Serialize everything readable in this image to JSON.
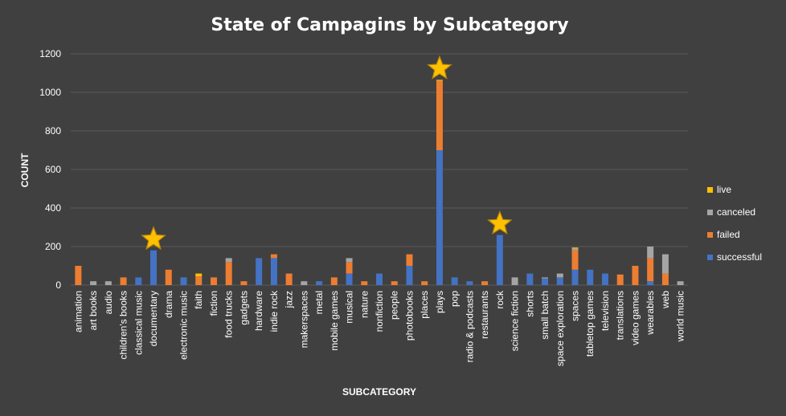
{
  "chart_data": {
    "type": "bar",
    "stacked": true,
    "title": "State of Campagins by Subcategory",
    "xlabel": "SUBCATEGORY",
    "ylabel": "COUNT",
    "ylim": [
      0,
      1200
    ],
    "yticks": [
      0,
      200,
      400,
      600,
      800,
      1000,
      1200
    ],
    "grid": true,
    "legend_position": "right",
    "categories": [
      "animation",
      "art books",
      "audio",
      "children's books",
      "classical music",
      "documentary",
      "drama",
      "electronic music",
      "faith",
      "fiction",
      "food trucks",
      "gadgets",
      "hardware",
      "indie rock",
      "jazz",
      "makerspaces",
      "metal",
      "mobile games",
      "musical",
      "nature",
      "nonfiction",
      "people",
      "photobooks",
      "places",
      "plays",
      "pop",
      "radio & podcasts",
      "restaurants",
      "rock",
      "science fiction",
      "shorts",
      "small batch",
      "space exploration",
      "spaces",
      "tabletop games",
      "television",
      "translations",
      "video games",
      "wearables",
      "web",
      "world music"
    ],
    "series": [
      {
        "name": "successful",
        "color": "#4472C4",
        "values": [
          0,
          0,
          0,
          0,
          40,
          180,
          0,
          40,
          0,
          0,
          0,
          0,
          140,
          140,
          0,
          0,
          20,
          0,
          60,
          0,
          60,
          0,
          100,
          0,
          700,
          40,
          20,
          0,
          260,
          0,
          60,
          35,
          40,
          80,
          80,
          60,
          0,
          0,
          20,
          0,
          0
        ]
      },
      {
        "name": "failed",
        "color": "#ED7D31",
        "values": [
          100,
          0,
          0,
          40,
          0,
          0,
          80,
          0,
          45,
          40,
          120,
          20,
          0,
          20,
          60,
          0,
          0,
          40,
          60,
          20,
          0,
          20,
          60,
          20,
          360,
          0,
          0,
          20,
          0,
          0,
          0,
          0,
          0,
          100,
          0,
          0,
          55,
          100,
          120,
          60,
          0
        ]
      },
      {
        "name": "canceled",
        "color": "#A5A5A5",
        "values": [
          0,
          20,
          20,
          0,
          0,
          0,
          0,
          0,
          0,
          0,
          20,
          0,
          0,
          0,
          0,
          20,
          0,
          0,
          20,
          0,
          0,
          0,
          0,
          0,
          0,
          0,
          0,
          0,
          0,
          40,
          0,
          5,
          20,
          10,
          0,
          0,
          0,
          0,
          60,
          100,
          20
        ]
      },
      {
        "name": "live",
        "color": "#FFC000",
        "values": [
          0,
          0,
          0,
          0,
          0,
          0,
          0,
          0,
          15,
          0,
          0,
          0,
          0,
          0,
          0,
          0,
          0,
          0,
          0,
          0,
          0,
          0,
          0,
          0,
          5,
          0,
          0,
          0,
          0,
          0,
          0,
          0,
          0,
          5,
          0,
          0,
          0,
          0,
          0,
          0,
          0
        ]
      }
    ],
    "star_markers": [
      "documentary",
      "plays",
      "rock"
    ],
    "star_color": "#FFC000",
    "star_stroke": "#B8860B"
  }
}
